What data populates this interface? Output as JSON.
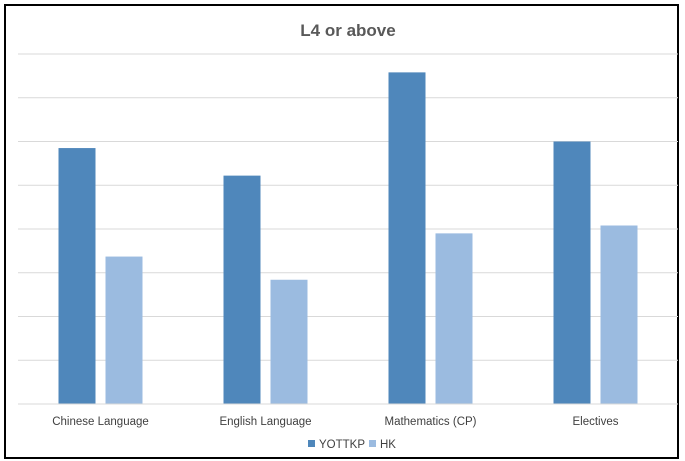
{
  "chart_data": {
    "type": "bar",
    "title": "L4 or above",
    "xlabel": "",
    "ylabel": "",
    "categories": [
      "Chinese Language",
      "English Language",
      "Mathematics (CP)",
      "Electives"
    ],
    "series": [
      {
        "name": "YOTTKP",
        "color": "#4f87bb",
        "values": [
          58.5,
          52.2,
          75.8,
          60.0
        ]
      },
      {
        "name": "HK",
        "color": "#9bbbe0",
        "values": [
          33.7,
          28.4,
          39.0,
          40.8
        ]
      }
    ],
    "ylim": [
      0,
      80
    ],
    "yticks": [
      0,
      10,
      20,
      30,
      40,
      50,
      60,
      70,
      80
    ],
    "y_tick_labels_shown": false,
    "grid": true,
    "legend": "bottom-center"
  }
}
